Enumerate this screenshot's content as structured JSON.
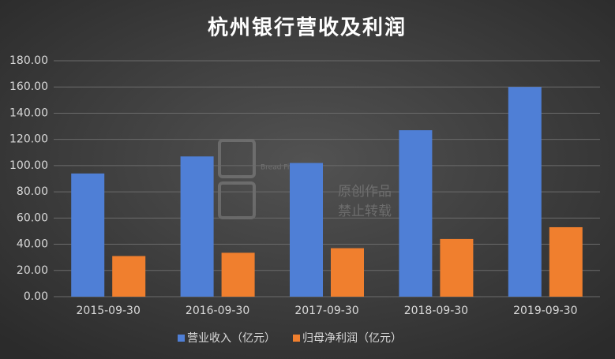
{
  "chart_data": {
    "type": "bar",
    "title": "杭州银行营收及利润",
    "categories": [
      "2015-09-30",
      "2016-09-30",
      "2017-09-30",
      "2018-09-30",
      "2019-09-30"
    ],
    "series": [
      {
        "name": "营业收入（亿元）",
        "color": "#4f7fd6",
        "values": [
          94,
          107,
          102,
          127,
          160
        ]
      },
      {
        "name": "归母净利润（亿元）",
        "color": "#f07f2e",
        "values": [
          31,
          33.5,
          37,
          44,
          53
        ]
      }
    ],
    "ylim": [
      0,
      180
    ],
    "yticks": [
      {
        "value": 0,
        "label": "0.00"
      },
      {
        "value": 20,
        "label": "20.00"
      },
      {
        "value": 40,
        "label": "40.00"
      },
      {
        "value": 60,
        "label": "60.00"
      },
      {
        "value": 80,
        "label": "80.00"
      },
      {
        "value": 100,
        "label": "100.00"
      },
      {
        "value": 120,
        "label": "120.00"
      },
      {
        "value": 140,
        "label": "140.00"
      },
      {
        "value": 160,
        "label": "160.00"
      },
      {
        "value": 180,
        "label": "180.00"
      }
    ],
    "grid": true,
    "legend": "bottom",
    "watermark": [
      "Bread Finance",
      "原创作品",
      "禁止转载"
    ]
  }
}
